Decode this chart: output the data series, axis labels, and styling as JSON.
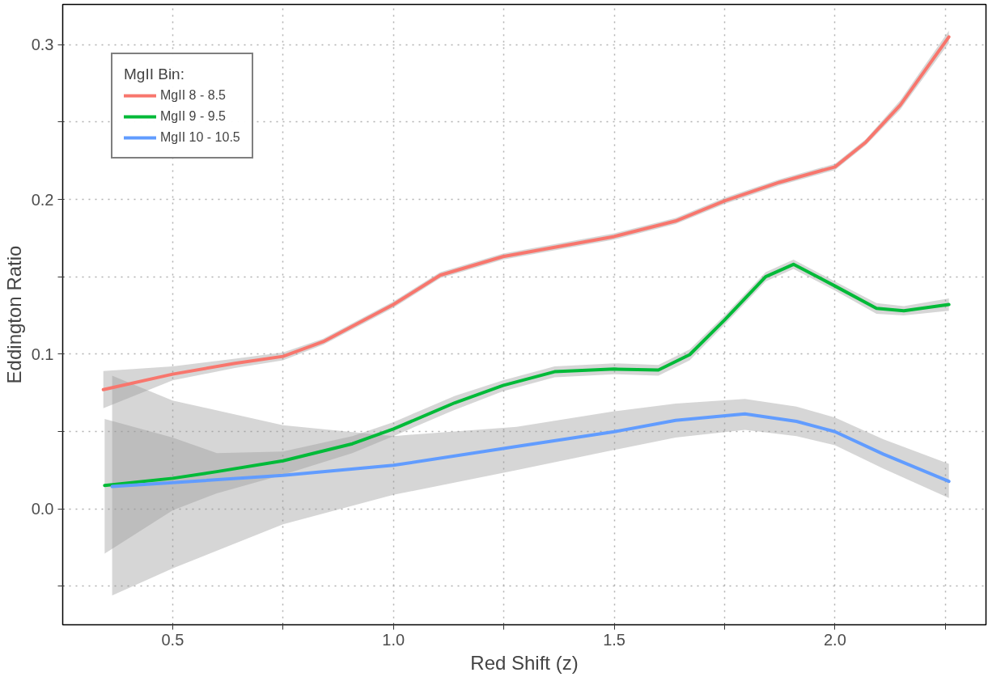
{
  "chart_data": {
    "type": "line",
    "xlabel": "Red Shift (z)",
    "ylabel": "Eddington Ratio",
    "legend_title": "MgII Bin:",
    "xlim": [
      0.251,
      2.342
    ],
    "ylim": [
      -0.075,
      0.326
    ],
    "xticks": [
      {
        "value": 0.5,
        "label": "0.5"
      },
      {
        "value": 0.75,
        "label": null
      },
      {
        "value": 1.0,
        "label": "1.0"
      },
      {
        "value": 1.25,
        "label": null
      },
      {
        "value": 1.5,
        "label": "1.5"
      },
      {
        "value": 1.75,
        "label": null
      },
      {
        "value": 2.0,
        "label": "2.0"
      },
      {
        "value": 2.25,
        "label": null
      }
    ],
    "yticks": [
      {
        "value": -0.05,
        "label": null
      },
      {
        "value": 0.0,
        "label": "0.0"
      },
      {
        "value": 0.05,
        "label": null
      },
      {
        "value": 0.1,
        "label": "0.1"
      },
      {
        "value": 0.15,
        "label": null
      },
      {
        "value": 0.2,
        "label": "0.2"
      },
      {
        "value": 0.25,
        "label": null
      },
      {
        "value": 0.3,
        "label": "0.3"
      }
    ],
    "grid": true,
    "legend": "top left",
    "marker": "none",
    "line_style": "solid",
    "series": [
      {
        "name": "MgII 8 - 8.5",
        "color": "#f8766d",
        "x": [
          0.343,
          0.5,
          0.641,
          0.75,
          0.841,
          1.0,
          1.106,
          1.248,
          1.5,
          1.639,
          1.75,
          1.874,
          2.0,
          2.07,
          2.148,
          2.258
        ],
        "values": [
          0.077,
          0.087,
          0.094,
          0.0985,
          0.108,
          0.132,
          0.151,
          0.163,
          0.176,
          0.186,
          0.199,
          0.211,
          0.221,
          0.237,
          0.261,
          0.305
        ],
        "lower": [
          0.065,
          0.083,
          0.091,
          0.096,
          0.106,
          0.13,
          0.149,
          0.161,
          0.174,
          0.184,
          0.197,
          0.209,
          0.219,
          0.235,
          0.258,
          0.301
        ],
        "upper": [
          0.089,
          0.092,
          0.097,
          0.101,
          0.11,
          0.134,
          0.153,
          0.165,
          0.178,
          0.188,
          0.201,
          0.213,
          0.223,
          0.239,
          0.264,
          0.309
        ]
      },
      {
        "name": "MgII 9 - 9.5",
        "color": "#00ba38",
        "x": [
          0.346,
          0.5,
          0.6,
          0.75,
          0.907,
          1.0,
          1.139,
          1.248,
          1.365,
          1.5,
          1.6,
          1.671,
          1.75,
          1.843,
          1.906,
          2.0,
          2.094,
          2.156,
          2.258
        ],
        "values": [
          0.015,
          0.0197,
          0.024,
          0.031,
          0.042,
          0.0516,
          0.0685,
          0.0797,
          0.0886,
          0.0903,
          0.0897,
          0.0996,
          0.122,
          0.15,
          0.158,
          0.144,
          0.1295,
          0.128,
          0.132
        ],
        "lower": [
          -0.029,
          -0.001,
          0.01,
          0.022,
          0.036,
          0.047,
          0.064,
          0.076,
          0.085,
          0.087,
          0.086,
          0.096,
          0.119,
          0.147,
          0.155,
          0.141,
          0.126,
          0.125,
          0.128
        ],
        "upper": [
          0.058,
          0.046,
          0.036,
          0.037,
          0.047,
          0.056,
          0.073,
          0.083,
          0.092,
          0.094,
          0.093,
          0.103,
          0.125,
          0.153,
          0.161,
          0.147,
          0.133,
          0.131,
          0.136
        ]
      },
      {
        "name": "MgII 10 - 10.5",
        "color": "#619cff",
        "x": [
          0.363,
          0.5,
          0.75,
          1.0,
          1.279,
          1.5,
          1.639,
          1.796,
          1.913,
          2.0,
          2.109,
          2.258
        ],
        "values": [
          0.0144,
          0.0169,
          0.0216,
          0.0281,
          0.0403,
          0.0498,
          0.0571,
          0.0613,
          0.0565,
          0.0498,
          0.0354,
          0.0177
        ],
        "lower": [
          -0.056,
          -0.0385,
          -0.01,
          0.009,
          0.025,
          0.038,
          0.046,
          0.051,
          0.047,
          0.041,
          0.026,
          0.007
        ],
        "upper": [
          0.086,
          0.07,
          0.054,
          0.047,
          0.053,
          0.063,
          0.068,
          0.071,
          0.066,
          0.059,
          0.045,
          0.029
        ]
      }
    ]
  }
}
